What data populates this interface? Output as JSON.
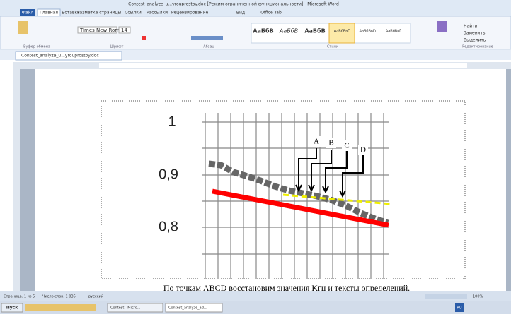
{
  "window": {
    "title": "Contest_analyze_u...yrouprostoy.doc [Режим ограниченной функциональности] - Microsoft Word"
  },
  "ribbon": {
    "tabs": [
      "Файл",
      "Главная",
      "Вставка",
      "Разметка страницы",
      "Ссылки",
      "Рассылки",
      "Рецензирование",
      "Вид",
      "Office Tab"
    ],
    "font": "Times New Roman",
    "size": "14",
    "styles": [
      "АаБбВ",
      "АаБбВ",
      "АаБбВ",
      "АаБбВвГ",
      "АаБбВвГг",
      "АаБбВвГ"
    ],
    "groups": [
      "Буфер обмена",
      "Шрифт",
      "Абзац",
      "Стили",
      "Редактирование"
    ],
    "editing": [
      "Найти",
      "Заменить",
      "Выделить"
    ]
  },
  "doc_tab": "Contest_analyze_u...yrouprostoy.doc",
  "figure": {
    "y_labels": [
      "1",
      "0,9",
      "0,8"
    ],
    "point_labels": [
      "A",
      "B",
      "C",
      "D"
    ]
  },
  "caption": "По точкам ABCD восстановим значения Kгц и тексты определений.",
  "status": {
    "page": "Страница: 1 из 5",
    "words": "Число слов: 1 035",
    "lang": "русский",
    "zoom": "100%"
  },
  "taskbar": {
    "start": "Пуск",
    "items": [
      "Contest - Micro...",
      "Contest_analyze_ad..."
    ],
    "lang": "RU"
  }
}
